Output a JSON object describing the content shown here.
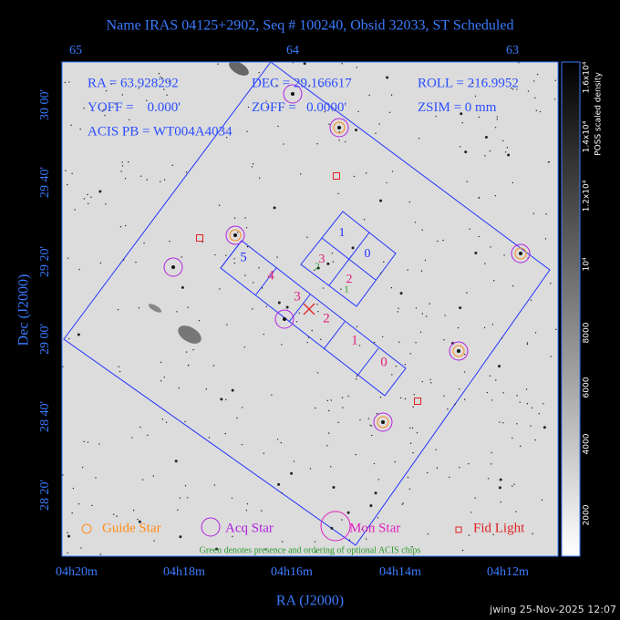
{
  "header": {
    "title": "Name IRAS 04125+2902, Seq # 100240, Obsid 32033, ST Scheduled"
  },
  "axes": {
    "top_ticks": [
      "65",
      "64",
      "63"
    ],
    "bottom_ticks": [
      "04h20m",
      "04h18m",
      "04h16m",
      "04h14m",
      "04h12m"
    ],
    "left_ticks": [
      "30 00'",
      "29 40'",
      "29 20'",
      "29 00'",
      "28 40'",
      "28 20'"
    ],
    "x_label": "RA (J2000)",
    "y_label": "Dec (J2000)"
  },
  "info": [
    [
      "RA = 63.928292",
      "DEC = 29.166617",
      "ROLL = 216.9952"
    ],
    [
      "YOFF =    0.000'",
      "ZOFF =   0.0000'",
      "ZSIM = 0 mm"
    ],
    [
      "ACIS PB = WT004A4034"
    ]
  ],
  "chips": {
    "s_array": [
      "5",
      "4",
      "3",
      "2",
      "1",
      "0"
    ],
    "i_array": [
      "1",
      "0",
      "3",
      "2"
    ],
    "optional": [
      "2",
      "1"
    ]
  },
  "legend": [
    "Guide Star",
    "Acq Star",
    "Mon Star",
    "Fid Light"
  ],
  "note": "Green denotes presence and ordering of optional ACIS chips",
  "colorbar": {
    "ticks": [
      "2000",
      "4000",
      "6000",
      "8000",
      "10⁴",
      "1.2x10⁴",
      "1.4x10⁴",
      "1.6x10⁴"
    ],
    "label": "POSS scaled density"
  },
  "footer": "jwing 25-Nov-2025 12:07"
}
